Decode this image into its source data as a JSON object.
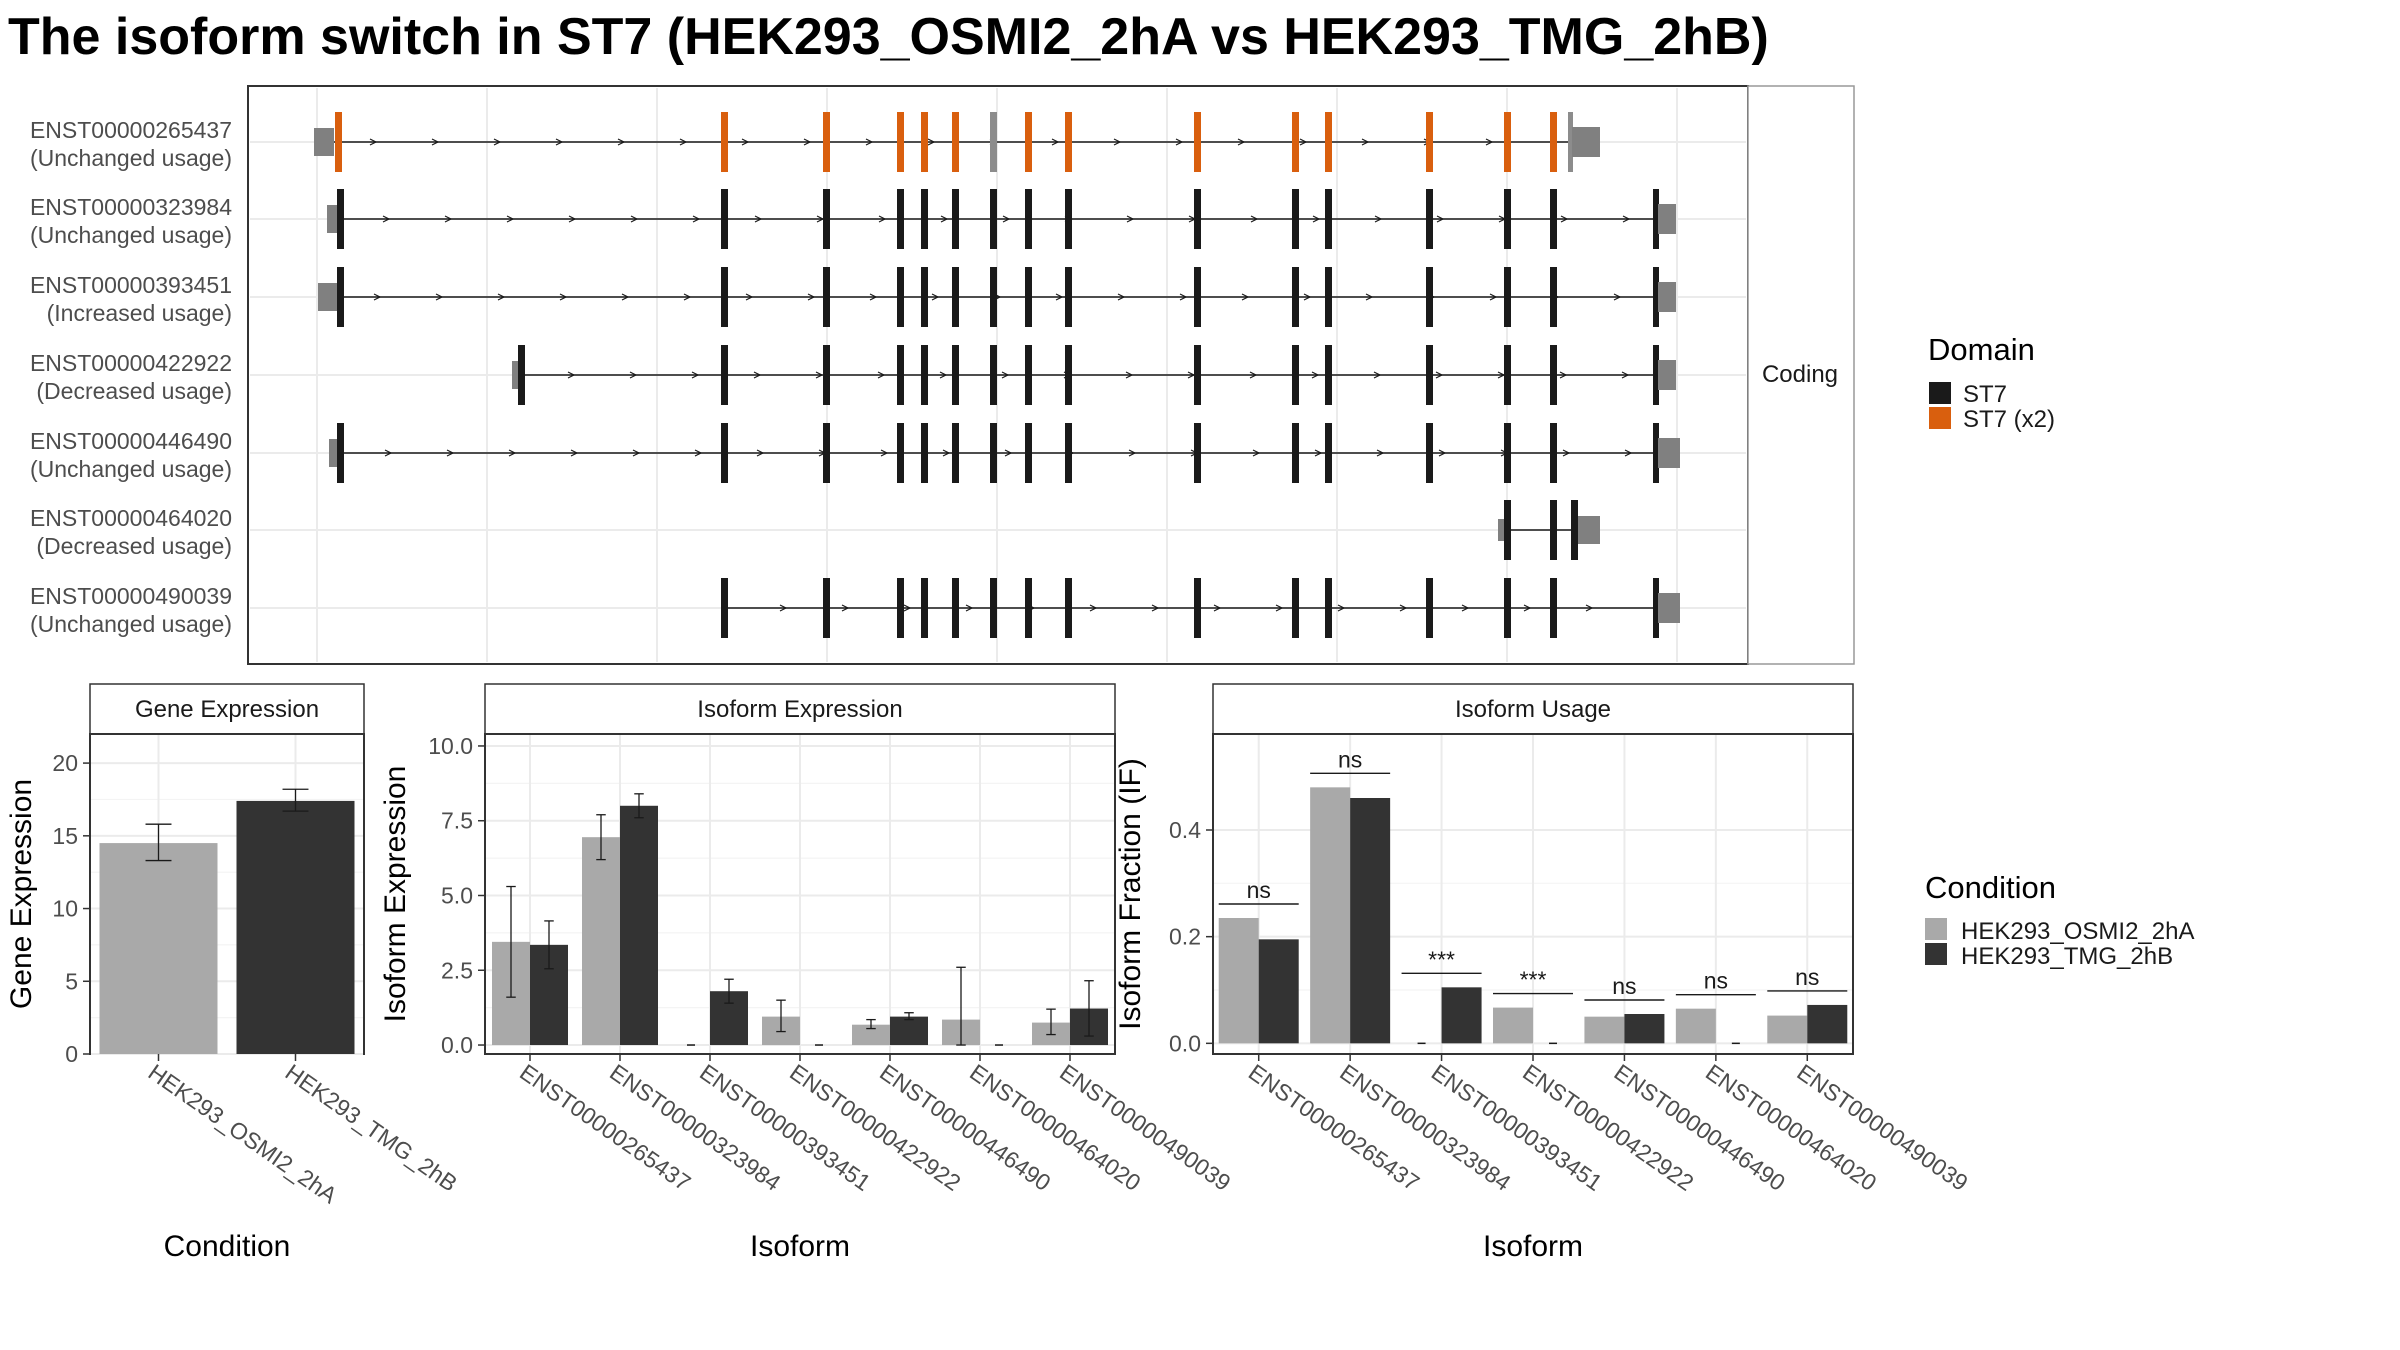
{
  "title": "The isoform switch in ST7 (HEK293_OSMI2_2hA vs HEK293_TMG_2hB)",
  "colors": {
    "st7": "#1a1a1a",
    "st7_x2": "#d95f0e",
    "utr": "#808080",
    "cond_a": "#a9a9a9",
    "cond_b": "#333333"
  },
  "structure": {
    "strip_label": "Coding",
    "isoforms": [
      {
        "id": "ENST00000265437",
        "usage": "(Unchanged usage)"
      },
      {
        "id": "ENST00000323984",
        "usage": "(Unchanged usage)"
      },
      {
        "id": "ENST00000393451",
        "usage": "(Increased usage)"
      },
      {
        "id": "ENST00000422922",
        "usage": "(Decreased usage)"
      },
      {
        "id": "ENST00000446490",
        "usage": "(Unchanged usage)"
      },
      {
        "id": "ENST00000464020",
        "usage": "(Decreased usage)"
      },
      {
        "id": "ENST00000490039",
        "usage": "(Unchanged usage)"
      }
    ],
    "legend_title": "Domain",
    "legend_items": [
      "ST7",
      "ST7 (x2)"
    ]
  },
  "chart_data": [
    {
      "type": "bar",
      "title": "Gene Expression",
      "xlabel": "Condition",
      "ylabel": "Gene Expression",
      "categories": [
        "HEK293_OSMI2_2hA",
        "HEK293_TMG_2hB"
      ],
      "values": [
        14.5,
        17.4
      ],
      "errors": [
        [
          13.3,
          15.8
        ],
        [
          16.7,
          18.2
        ]
      ],
      "ylim": [
        0,
        22
      ],
      "yticks": [
        "0",
        "5",
        "10",
        "15",
        "20"
      ]
    },
    {
      "type": "bar",
      "title": "Isoform Expression",
      "xlabel": "Isoform",
      "ylabel": "Isoform Expression",
      "categories": [
        "ENST00000265437",
        "ENST00000323984",
        "ENST00000393451",
        "ENST00000422922",
        "ENST00000446490",
        "ENST00000464020",
        "ENST00000490039"
      ],
      "series": [
        {
          "name": "HEK293_OSMI2_2hA",
          "values": [
            3.45,
            6.95,
            0.0,
            0.95,
            0.68,
            0.85,
            0.75
          ],
          "errors": [
            [
              1.6,
              5.3
            ],
            [
              6.2,
              7.7
            ],
            [
              0,
              0
            ],
            [
              0.45,
              1.5
            ],
            [
              0.55,
              0.85
            ],
            [
              0,
              2.6
            ],
            [
              0.35,
              1.2
            ]
          ]
        },
        {
          "name": "HEK293_TMG_2hB",
          "values": [
            3.35,
            8.0,
            1.8,
            0.0,
            0.95,
            0.0,
            1.22
          ],
          "errors": [
            [
              2.55,
              4.15
            ],
            [
              7.6,
              8.4
            ],
            [
              1.4,
              2.2
            ],
            [
              0,
              0
            ],
            [
              0.85,
              1.08
            ],
            [
              0,
              0
            ],
            [
              0.3,
              2.15
            ]
          ]
        }
      ],
      "ylim": [
        -0.3,
        10.4
      ],
      "yticks": [
        "0.0",
        "2.5",
        "5.0",
        "7.5",
        "10.0"
      ]
    },
    {
      "type": "bar",
      "title": "Isoform Usage",
      "xlabel": "Isoform",
      "ylabel": "Isoform Fraction (IF)",
      "categories": [
        "ENST00000265437",
        "ENST00000323984",
        "ENST00000393451",
        "ENST00000422922",
        "ENST00000446490",
        "ENST00000464020",
        "ENST00000490039"
      ],
      "series": [
        {
          "name": "HEK293_OSMI2_2hA",
          "values": [
            0.235,
            0.48,
            0.0,
            0.067,
            0.05,
            0.065,
            0.052
          ]
        },
        {
          "name": "HEK293_TMG_2hB",
          "values": [
            0.195,
            0.46,
            0.105,
            0.0,
            0.055,
            0.0,
            0.072
          ]
        }
      ],
      "significance": [
        "ns",
        "ns",
        "***",
        "***",
        "ns",
        "ns",
        "ns"
      ],
      "ylim": [
        -0.02,
        0.58
      ],
      "yticks": [
        "0.0",
        "0.2",
        "0.4"
      ]
    }
  ],
  "condition_legend": {
    "title": "Condition",
    "items": [
      "HEK293_OSMI2_2hA",
      "HEK293_TMG_2hB"
    ]
  }
}
